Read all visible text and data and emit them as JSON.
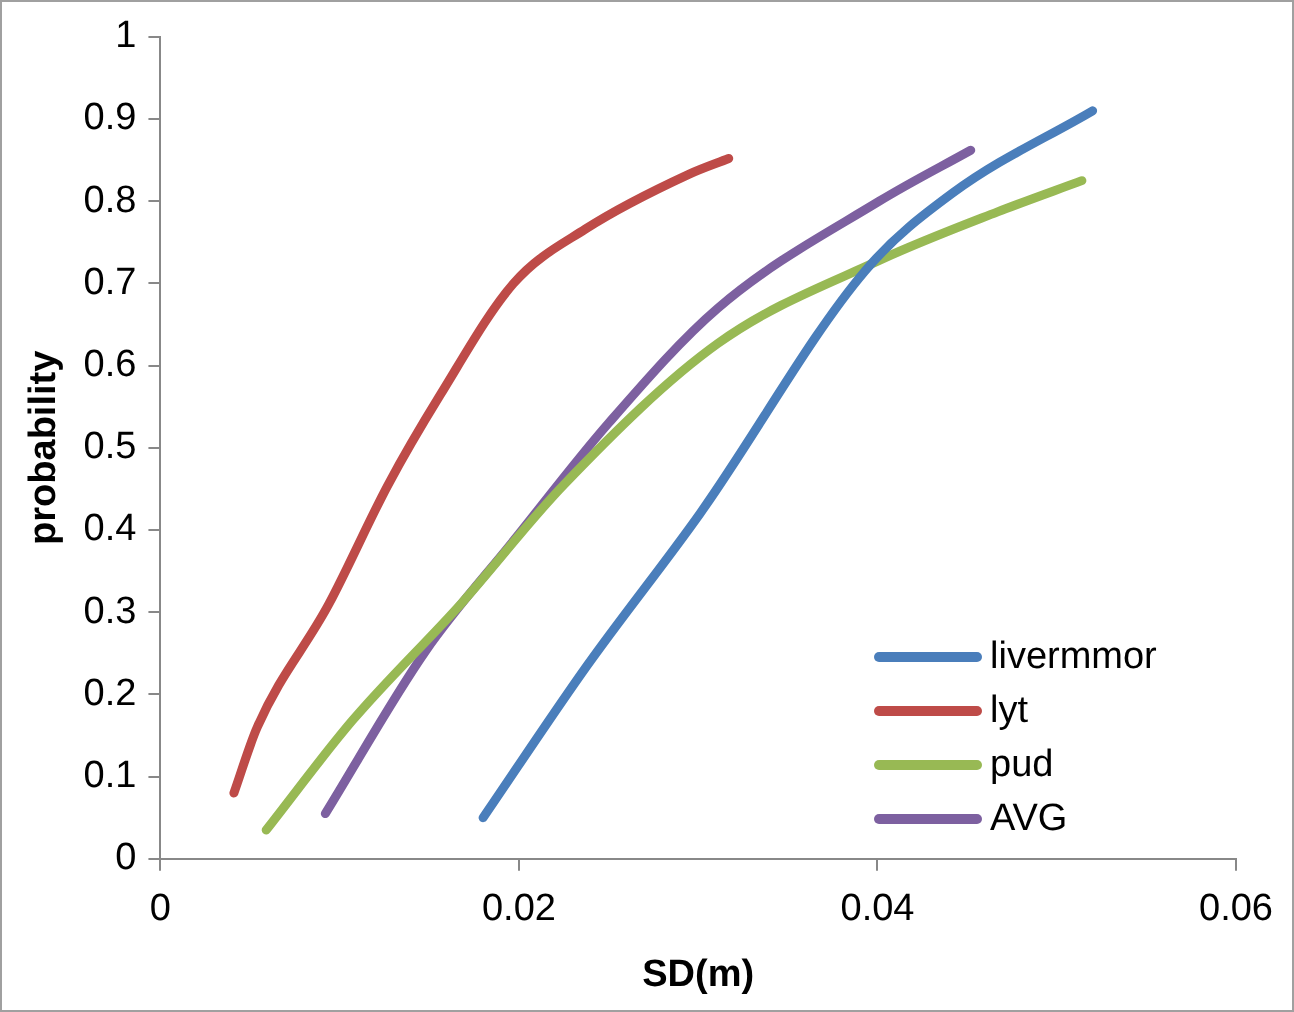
{
  "chart_data": {
    "type": "line",
    "xlabel": "SD(m)",
    "ylabel": "probability",
    "xlim": [
      0,
      0.06
    ],
    "xticks": [
      0,
      0.02,
      0.04,
      0.06
    ],
    "ylim": [
      0,
      1
    ],
    "yticks": [
      0,
      0.1,
      0.2,
      0.3,
      0.4,
      0.5,
      0.6,
      0.7,
      0.8,
      0.9,
      1
    ],
    "grid": false,
    "legend": "bottom right",
    "marker": "none",
    "line_style": "solid",
    "series": [
      {
        "name": "livermmor",
        "color": "#4a7ebb",
        "x": [
          0.018,
          0.0238,
          0.0301,
          0.0393,
          0.0442,
          0.052
        ],
        "values": [
          0.05,
          0.235,
          0.42,
          0.715,
          0.81,
          0.91
        ]
      },
      {
        "name": "lyt",
        "color": "#be4b48",
        "x": [
          0.0041,
          0.0054,
          0.0094,
          0.0127,
          0.0156,
          0.0197,
          0.0237,
          0.0295,
          0.0317
        ],
        "values": [
          0.08,
          0.16,
          0.31,
          0.455,
          0.564,
          0.7,
          0.766,
          0.833,
          0.852
        ]
      },
      {
        "name": "pud",
        "color": "#98b954",
        "x": [
          0.0059,
          0.0107,
          0.0168,
          0.0225,
          0.0311,
          0.0401,
          0.0467,
          0.0514
        ],
        "values": [
          0.035,
          0.168,
          0.311,
          0.455,
          0.627,
          0.728,
          0.787,
          0.825
        ]
      },
      {
        "name": "AVG",
        "color": "#7d60a0",
        "x": [
          0.0092,
          0.0148,
          0.0197,
          0.025,
          0.0311,
          0.0401,
          0.0452
        ],
        "values": [
          0.055,
          0.253,
          0.387,
          0.53,
          0.67,
          0.8,
          0.862
        ]
      }
    ]
  }
}
